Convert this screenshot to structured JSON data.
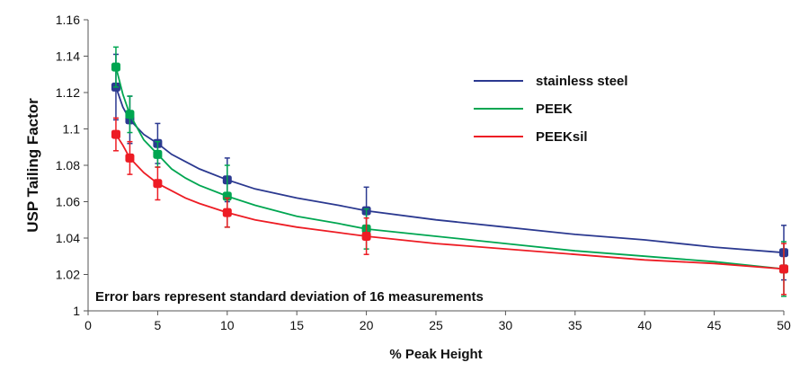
{
  "chart_data": {
    "type": "line",
    "xlabel": "% Peak Height",
    "ylabel": "USP Tailing Factor",
    "xlim": [
      0,
      50
    ],
    "ylim": [
      1,
      1.16
    ],
    "x_ticks": [
      0,
      5,
      10,
      15,
      20,
      25,
      30,
      35,
      40,
      45,
      50
    ],
    "x_tick_labels": [
      "0",
      "5",
      "10",
      "15",
      "20",
      "25",
      "30",
      "35",
      "40",
      "45",
      "50"
    ],
    "y_ticks": [
      1,
      1.02,
      1.04,
      1.06,
      1.08,
      1.1,
      1.12,
      1.14,
      1.16
    ],
    "y_tick_labels": [
      "1",
      "1.02",
      "1.04",
      "1.06",
      "1.08",
      "1.1",
      "1.12",
      "1.14",
      "1.16"
    ],
    "annotation": "Error bars represent standard deviation of 16 measurements",
    "legend_position": "top-right",
    "grid": false,
    "series": [
      {
        "name": "stainless steel",
        "color": "#2b3990",
        "curve_x": [
          2,
          2.5,
          3,
          4,
          5,
          6,
          7,
          8,
          10,
          12,
          15,
          18,
          20,
          25,
          30,
          35,
          40,
          45,
          50
        ],
        "curve_y": [
          1.123,
          1.112,
          1.105,
          1.097,
          1.092,
          1.086,
          1.082,
          1.078,
          1.072,
          1.067,
          1.062,
          1.058,
          1.055,
          1.05,
          1.046,
          1.042,
          1.039,
          1.035,
          1.032
        ],
        "points": [
          {
            "x": 2,
            "y": 1.123,
            "err": 0.018
          },
          {
            "x": 3,
            "y": 1.105,
            "err": 0.013
          },
          {
            "x": 5,
            "y": 1.092,
            "err": 0.011
          },
          {
            "x": 10,
            "y": 1.072,
            "err": 0.012
          },
          {
            "x": 20,
            "y": 1.055,
            "err": 0.013
          },
          {
            "x": 50,
            "y": 1.032,
            "err": 0.015
          }
        ]
      },
      {
        "name": "PEEK",
        "color": "#00a651",
        "curve_x": [
          2,
          2.5,
          3,
          4,
          5,
          6,
          7,
          8,
          10,
          12,
          15,
          18,
          20,
          25,
          30,
          35,
          40,
          45,
          50
        ],
        "curve_y": [
          1.134,
          1.119,
          1.108,
          1.094,
          1.086,
          1.078,
          1.073,
          1.069,
          1.063,
          1.058,
          1.052,
          1.048,
          1.045,
          1.041,
          1.037,
          1.033,
          1.03,
          1.027,
          1.023
        ],
        "points": [
          {
            "x": 2,
            "y": 1.134,
            "err": 0.011
          },
          {
            "x": 3,
            "y": 1.108,
            "err": 0.01
          },
          {
            "x": 5,
            "y": 1.086,
            "err": 0.007
          },
          {
            "x": 10,
            "y": 1.063,
            "err": 0.017
          },
          {
            "x": 20,
            "y": 1.045,
            "err": 0.011
          },
          {
            "x": 50,
            "y": 1.023,
            "err": 0.015
          }
        ]
      },
      {
        "name": "PEEKsil",
        "color": "#ed1c24",
        "curve_x": [
          2,
          2.5,
          3,
          4,
          5,
          6,
          7,
          8,
          10,
          12,
          15,
          18,
          20,
          25,
          30,
          35,
          40,
          45,
          50
        ],
        "curve_y": [
          1.097,
          1.091,
          1.084,
          1.076,
          1.07,
          1.066,
          1.062,
          1.059,
          1.054,
          1.05,
          1.046,
          1.043,
          1.041,
          1.037,
          1.034,
          1.031,
          1.028,
          1.026,
          1.023
        ],
        "points": [
          {
            "x": 2,
            "y": 1.097,
            "err": 0.009
          },
          {
            "x": 3,
            "y": 1.084,
            "err": 0.009
          },
          {
            "x": 5,
            "y": 1.07,
            "err": 0.009
          },
          {
            "x": 10,
            "y": 1.054,
            "err": 0.008
          },
          {
            "x": 20,
            "y": 1.041,
            "err": 0.01
          },
          {
            "x": 50,
            "y": 1.023,
            "err": 0.014
          }
        ]
      }
    ]
  }
}
